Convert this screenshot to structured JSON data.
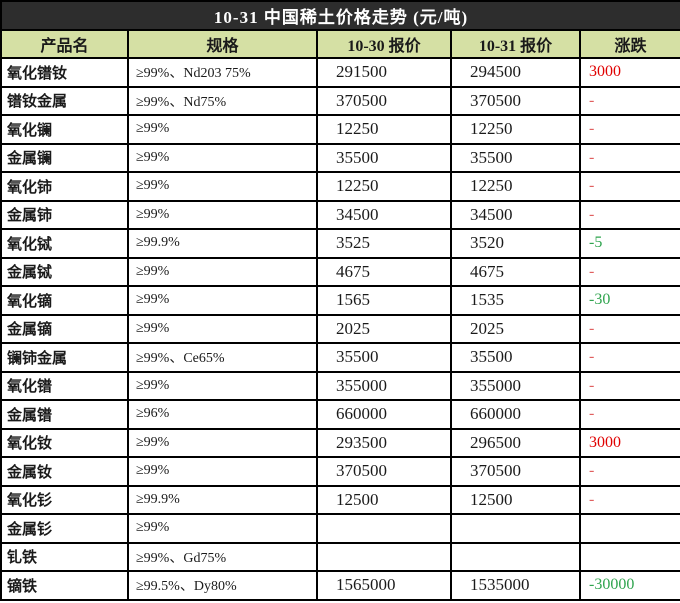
{
  "title": "10-31 中国稀土价格走势 (元/吨)",
  "columns": [
    "产品名",
    "规格",
    "10-30 报价",
    "10-31 报价",
    "涨跌"
  ],
  "colors": {
    "title_bg": "#2d2d2d",
    "header_bg": "#d5e0a4",
    "up_red": "#e00000",
    "down_green": "#2fa44e",
    "flat_dash": "#e06060"
  },
  "rows": [
    {
      "name": "氧化镨钕",
      "spec": "≥99%、Nd203 75%",
      "p1030": "291500",
      "p1031": "294500",
      "change": "3000",
      "change_type": "up"
    },
    {
      "name": "镨钕金属",
      "spec": "≥99%、Nd75%",
      "p1030": "370500",
      "p1031": "370500",
      "change": "-",
      "change_type": "flat"
    },
    {
      "name": "氧化镧",
      "spec": "≥99%",
      "p1030": "12250",
      "p1031": "12250",
      "change": "-",
      "change_type": "flat"
    },
    {
      "name": "金属镧",
      "spec": "≥99%",
      "p1030": "35500",
      "p1031": "35500",
      "change": "-",
      "change_type": "flat"
    },
    {
      "name": "氧化铈",
      "spec": "≥99%",
      "p1030": "12250",
      "p1031": "12250",
      "change": "-",
      "change_type": "flat"
    },
    {
      "name": "金属铈",
      "spec": "≥99%",
      "p1030": "34500",
      "p1031": "34500",
      "change": "-",
      "change_type": "flat"
    },
    {
      "name": "氧化铽",
      "spec": "≥99.9%",
      "p1030": "3525",
      "p1031": "3520",
      "change": "-5",
      "change_type": "down"
    },
    {
      "name": "金属铽",
      "spec": "≥99%",
      "p1030": "4675",
      "p1031": "4675",
      "change": "-",
      "change_type": "flat"
    },
    {
      "name": "氧化镝",
      "spec": "≥99%",
      "p1030": "1565",
      "p1031": "1535",
      "change": "-30",
      "change_type": "down"
    },
    {
      "name": "金属镝",
      "spec": "≥99%",
      "p1030": "2025",
      "p1031": "2025",
      "change": "-",
      "change_type": "flat"
    },
    {
      "name": "镧铈金属",
      "spec": "≥99%、Ce65%",
      "p1030": "35500",
      "p1031": "35500",
      "change": "-",
      "change_type": "flat"
    },
    {
      "name": "氧化镨",
      "spec": "≥99%",
      "p1030": "355000",
      "p1031": "355000",
      "change": "-",
      "change_type": "flat"
    },
    {
      "name": "金属镨",
      "spec": "≥96%",
      "p1030": "660000",
      "p1031": "660000",
      "change": "-",
      "change_type": "flat"
    },
    {
      "name": "氧化钕",
      "spec": "≥99%",
      "p1030": "293500",
      "p1031": "296500",
      "change": "3000",
      "change_type": "up"
    },
    {
      "name": "金属钕",
      "spec": "≥99%",
      "p1030": "370500",
      "p1031": "370500",
      "change": "-",
      "change_type": "flat"
    },
    {
      "name": "氧化钐",
      "spec": "≥99.9%",
      "p1030": "12500",
      "p1031": "12500",
      "change": "-",
      "change_type": "flat"
    },
    {
      "name": "金属钐",
      "spec": "≥99%",
      "p1030": "",
      "p1031": "",
      "change": "",
      "change_type": "none"
    },
    {
      "name": "钆铁",
      "spec": "≥99%、Gd75%",
      "p1030": "",
      "p1031": "",
      "change": "",
      "change_type": "none"
    },
    {
      "name": "镝铁",
      "spec": "≥99.5%、Dy80%",
      "p1030": "1565000",
      "p1031": "1535000",
      "change": "-30000",
      "change_type": "down"
    }
  ]
}
